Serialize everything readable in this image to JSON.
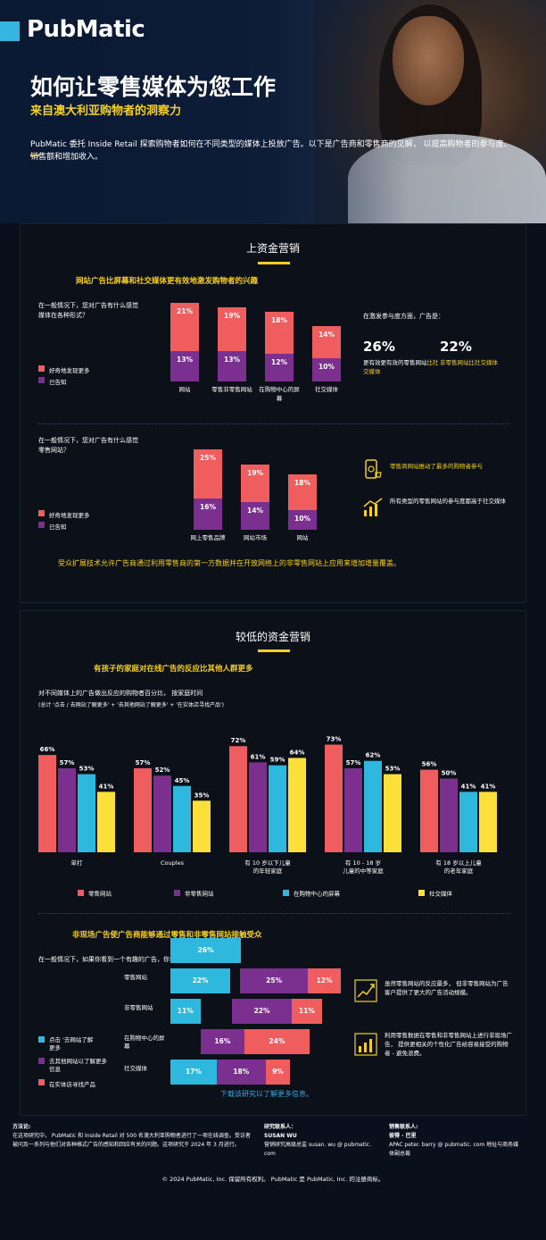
{
  "brand": {
    "logo": "PubMatic"
  },
  "hero": {
    "title": "如何让零售媒体为您工作",
    "subtitle": "来自澳大利亚购物者的洞察力",
    "intro": "PubMatic 委托 Inside Retail 探索购物者如何在不同类型的媒体上投放广告。以下是广告商和零售商的见解， 以提高购物者的参与度、销售额和增加收入。"
  },
  "section1": {
    "title": "上资金营销",
    "headline": "网站广告比屏幕和社交媒体更有效地激发购物者的兴趣",
    "chart1": {
      "question": "在一般情况下，您对广告有什么感觉媒体在各种形式？",
      "legend": [
        "好奇地发现更多",
        "已告知"
      ],
      "categories": [
        "网站",
        "零售非零售网站",
        "在购物中心的屏幕",
        "社交媒体"
      ],
      "series": [
        {
          "name": "好奇地发现更多",
          "values": [
            "21%",
            "19%",
            "18%",
            "14%"
          ]
        },
        {
          "name": "已告知",
          "values": [
            "13%",
            "13%",
            "12%",
            "10%"
          ]
        }
      ]
    },
    "engagement": {
      "lead": "在激发参与度方面，广告是：",
      "stat1_value": "26%",
      "stat1_text": "更有效更有效的零售网站",
      "stat1_highlight": "比社交媒体",
      "stat2_value": "22%",
      "stat2_highlight": "非零售网站比社交媒体"
    },
    "chart2": {
      "question": "在一般情况下，您对广告有什么感觉零售网站？",
      "legend": [
        "好奇地发现更多",
        "已告知"
      ],
      "categories": [
        "网上零售品牌",
        "网站市场",
        "网站"
      ],
      "series": [
        {
          "name": "好奇地发现更多",
          "values": [
            "25%",
            "19%",
            "18%"
          ]
        },
        {
          "name": "已告知",
          "values": [
            "16%",
            "14%",
            "10%"
          ]
        }
      ]
    },
    "insight1": "零售商网站推动了最多的购物者参与",
    "insight2": "所有类型的零售网站的参与度都高于社交媒体",
    "footnote": "受众扩展技术允许广告商通过利用零售商的第一方数据并在开放网络上的非零售网站上应用来增加增量覆盖。"
  },
  "section2": {
    "title": "较低的资金营销",
    "headline": "有孩子的家庭对在线广告的反应比其他人群更多",
    "question": "对不同媒体上的广告做出反应的购物者百分比， 按家庭时间",
    "subnote": "(总计 '点击 / 去网站了解更多' + '去其他网站了解更多' + '在实体店寻找产品')",
    "chart_data": {
      "type": "bar",
      "categories": [
        "单打",
        "Couples",
        "有 10 岁以下儿童的年轻家庭",
        "有 10 - 18 岁儿童的中等家庭",
        "有 18 岁以上儿童的老年家庭"
      ],
      "series": [
        {
          "name": "零售网站",
          "values": [
            66,
            57,
            72,
            73,
            56
          ],
          "color": "#ef5d5e"
        },
        {
          "name": "非零售网站",
          "values": [
            57,
            52,
            61,
            57,
            50
          ],
          "color": "#7b2f8f"
        },
        {
          "name": "在购物中心的屏幕",
          "values": [
            53,
            45,
            59,
            62,
            41
          ],
          "color": "#2fb8de"
        },
        {
          "name": "社交媒体",
          "values": [
            41,
            35,
            64,
            53,
            41
          ],
          "color": "#fbe03a"
        }
      ],
      "labels": [
        [
          "66%",
          "57%",
          "53%",
          "41%"
        ],
        [
          "57%",
          "52%",
          "45%",
          "35%"
        ],
        [
          "72%",
          "61%",
          "59%",
          "64%"
        ],
        [
          "73%",
          "57%",
          "62%",
          "53%"
        ],
        [
          "56%",
          "50%",
          "41%",
          "41%"
        ]
      ],
      "ylim": [
        0,
        80
      ]
    },
    "headline2": "非现场广告使广告商能够通过零售和非零售网站接触受众",
    "question2": "在一般情况下，如果你看到一个有趣的广告，你会...",
    "stack_legend": [
      "点击 '去网站了解更多",
      "去其他网站以了解更多信息",
      "在实体店寻找产品"
    ],
    "stack_rows": [
      {
        "label": "",
        "values": [
          "26%",
          "",
          ""
        ],
        "nums": [
          26,
          0,
          0
        ]
      },
      {
        "label": "零售网站",
        "values": [
          "22%",
          "25%",
          "12%"
        ],
        "nums": [
          22,
          25,
          12
        ]
      },
      {
        "label": "非零售网站",
        "values": [
          "11%",
          "22%",
          "11%"
        ],
        "nums": [
          11,
          22,
          11
        ]
      },
      {
        "label": "在购物中心的屏幕",
        "values": [
          "",
          "16%",
          "24%"
        ],
        "nums": [
          0,
          16,
          24
        ]
      },
      {
        "label": "社交媒体",
        "values": [
          "17%",
          "18%",
          "9%"
        ],
        "nums": [
          17,
          18,
          9
        ]
      }
    ],
    "insight3": "虽然零售网站的反应最多， 但非零售网站为广告客户提供了更大的广告活动规模。",
    "insight4": "利用零售数据在零售和非零售网站上进行非现场广告， 提供更相关的个性化广告给容易接受的购物者 - 避免浪费。",
    "cta": "下载该研究以了解更多信息。"
  },
  "footer": {
    "method_title": "方法论:",
    "method_text": "在这项研究中， PubMatic 和 Inside Retail 对 500 名澳大利亚购物者进行了一项在线调查。受访者被问及一系列与他们对各种格式广告的感知和回应有关的问题。这项研究于 2024 年 3 月进行。",
    "research_title": "研究联系人：",
    "research_name": "SUSAN WU",
    "research_text": "营销研究高级总监 susan. wu @ pubmatic. com",
    "sales_title": "销售联系人:",
    "sales_name": "彼得 · 巴里",
    "sales_text": "APAC peter. barry @ pubmatic. com 地址与商务媒体副总裁",
    "copyright": "© 2024 PubMatic, Inc. 保留所有权利。 PubMatic 是 PubMatic, Inc. 的注册商标。"
  },
  "colors": {
    "accent": "#f5d020",
    "red": "#ef5d5e",
    "purple": "#7b2f8f",
    "cyan": "#2fb8de",
    "yellow": "#fbe03a"
  }
}
